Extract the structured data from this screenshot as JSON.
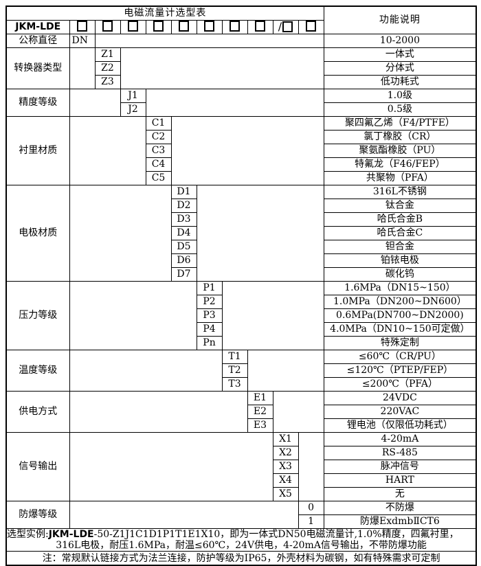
{
  "title": "电磁流量计选型表",
  "function_header": "功能说明",
  "model": "JKM-LDE",
  "checkbox_prefixes": [
    "",
    "",
    "",
    "",
    "",
    "",
    "",
    "",
    "/",
    ""
  ],
  "sections": [
    {
      "key": "nominal-diameter",
      "label": "公称直径",
      "col": 0,
      "rows": [
        {
          "code": "DN",
          "desc": "10-2000"
        }
      ]
    },
    {
      "key": "converter-type",
      "label": "转换器类型",
      "col": 1,
      "rows": [
        {
          "code": "Z1",
          "desc": "一体式"
        },
        {
          "code": "Z2",
          "desc": "分体式"
        },
        {
          "code": "Z3",
          "desc": "低功耗式"
        }
      ]
    },
    {
      "key": "accuracy-class",
      "label": "精度等级",
      "col": 2,
      "rows": [
        {
          "code": "J1",
          "desc": "1.0级"
        },
        {
          "code": "J2",
          "desc": "0.5级"
        }
      ]
    },
    {
      "key": "lining-material",
      "label": "衬里材质",
      "col": 3,
      "rows": [
        {
          "code": "C1",
          "desc": "聚四氟乙烯（F4/PTFE）"
        },
        {
          "code": "C2",
          "desc": "氯丁橡胶（CR）"
        },
        {
          "code": "C3",
          "desc": "聚氨酯橡胶（PU）"
        },
        {
          "code": "C4",
          "desc": "特氟龙（F46/FEP）"
        },
        {
          "code": "C5",
          "desc": "共聚物（PFA）"
        }
      ]
    },
    {
      "key": "electrode-material",
      "label": "电极材质",
      "col": 4,
      "rows": [
        {
          "code": "D1",
          "desc": "316L不锈钢"
        },
        {
          "code": "D2",
          "desc": "钛合金"
        },
        {
          "code": "D3",
          "desc": "哈氏合金B"
        },
        {
          "code": "D4",
          "desc": "哈氏合金C"
        },
        {
          "code": "D5",
          "desc": "钽合金"
        },
        {
          "code": "D6",
          "desc": "铂铱电极"
        },
        {
          "code": "D7",
          "desc": "碳化钨"
        }
      ]
    },
    {
      "key": "pressure-class",
      "label": "压力等级",
      "col": 5,
      "rows": [
        {
          "code": "P1",
          "desc": "1.6MPa（DN15~150）"
        },
        {
          "code": "P2",
          "desc": "1.0MPa（DN200~DN600）"
        },
        {
          "code": "P3",
          "desc": "0.6MPa(DN700~DN2000)"
        },
        {
          "code": "P4",
          "desc": "4.0MPa（DN10~150可定做）"
        },
        {
          "code": "Pn",
          "desc": "特殊定制"
        }
      ]
    },
    {
      "key": "temperature-class",
      "label": "温度等级",
      "col": 6,
      "rows": [
        {
          "code": "T1",
          "desc": "≤60℃（CR/PU）"
        },
        {
          "code": "T2",
          "desc": "≤120℃（PTEP/FEP）"
        },
        {
          "code": "T3",
          "desc": "≤200℃（PFA）"
        }
      ]
    },
    {
      "key": "power-supply",
      "label": "供电方式",
      "col": 7,
      "rows": [
        {
          "code": "E1",
          "desc": "24VDC"
        },
        {
          "code": "E2",
          "desc": "220VAC"
        },
        {
          "code": "E3",
          "desc": "锂电池（仅限低功耗式）"
        }
      ]
    },
    {
      "key": "signal-output",
      "label": "信号输出",
      "col": 8,
      "rows": [
        {
          "code": "X1",
          "desc": "4-20mA"
        },
        {
          "code": "X2",
          "desc": "RS-485"
        },
        {
          "code": "X3",
          "desc": "脉冲信号"
        },
        {
          "code": "X4",
          "desc": "HART"
        },
        {
          "code": "X5",
          "desc": "无"
        }
      ]
    },
    {
      "key": "explosion-proof-class",
      "label": "防爆等级",
      "col": 9,
      "rows": [
        {
          "code": "0",
          "desc": "不防爆"
        },
        {
          "code": "1",
          "desc": "防爆ExdmbⅡCT6"
        }
      ]
    }
  ],
  "example": {
    "prefix": "选型实例:",
    "model": "JKM-LDE",
    "line1_rest": "-50-Z1J1C1D1P1T1E1X10，即为一体式DN50电磁流量计,1.0%精度，四氟衬里，",
    "line2": "316L电极，耐压1.6MPa，耐温≤60℃，24V供电，4-20mA信号输出，不带防爆功能"
  },
  "note": "注：常规默认链接方式为法兰连接，防护等级为IP65，外壳材料为碳钢，如有特殊需求可定制",
  "colors": {
    "border": "#000000",
    "background": "#ffffff",
    "text": "#000000"
  }
}
